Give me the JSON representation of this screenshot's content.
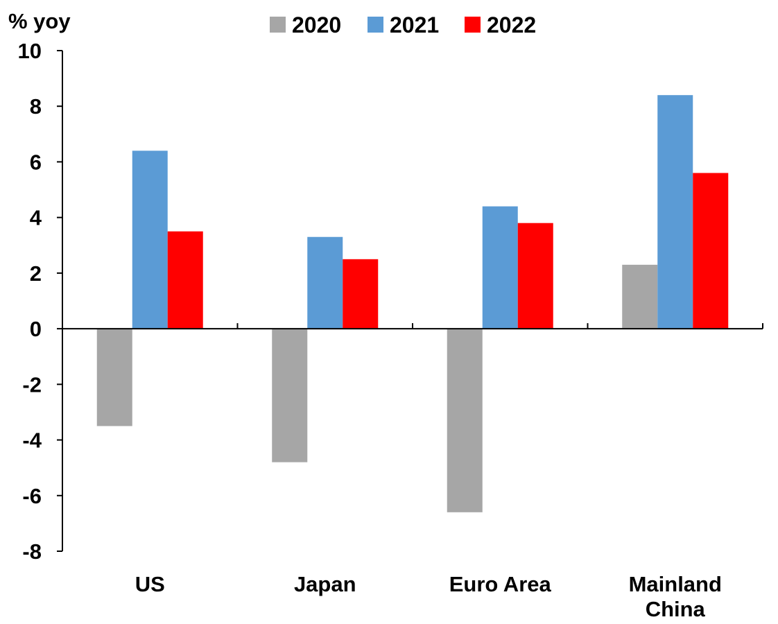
{
  "chart_data": {
    "type": "bar",
    "unit_label": "% yoy",
    "categories": [
      [
        "US"
      ],
      [
        "Japan"
      ],
      [
        "Euro Area"
      ],
      [
        "Mainland",
        "China"
      ]
    ],
    "series": [
      {
        "name": "2020",
        "color": "#a6a6a6",
        "values": [
          -3.5,
          -4.8,
          -6.6,
          2.3
        ]
      },
      {
        "name": "2021",
        "color": "#5b9bd5",
        "values": [
          6.4,
          3.3,
          4.4,
          8.4
        ]
      },
      {
        "name": "2022",
        "color": "#ff0000",
        "values": [
          3.5,
          2.5,
          3.8,
          5.6
        ]
      }
    ],
    "y_ticks": [
      "10",
      "8",
      "6",
      "4",
      "2",
      "0",
      "-2",
      "-4",
      "-6",
      "-8"
    ],
    "ylim": [
      -8,
      10
    ],
    "legend_position": "top-center",
    "grid": false
  }
}
